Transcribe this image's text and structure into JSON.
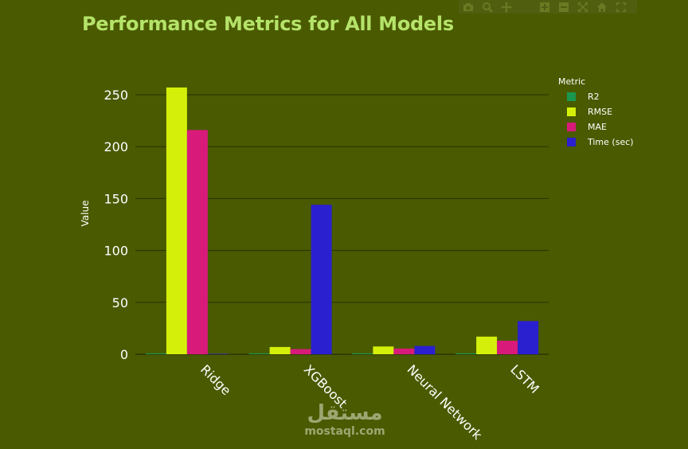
{
  "chart_data": {
    "type": "bar",
    "title": "Performance Metrics for All Models",
    "xlabel": "",
    "ylabel": "Value",
    "legend_title": "Metric",
    "legend_position": "top-right",
    "grid": true,
    "ylim": [
      0,
      270
    ],
    "yticks": [
      0,
      50,
      100,
      150,
      200,
      250
    ],
    "categories": [
      "Ridge",
      "XGBoost",
      "Neural Network",
      "LSTM"
    ],
    "series": [
      {
        "name": "R2",
        "color": "#1a9850",
        "values": [
          0.9,
          0.9,
          0.9,
          0.9
        ]
      },
      {
        "name": "RMSE",
        "color": "#d4f00a",
        "values": [
          257,
          7,
          7.5,
          17
        ]
      },
      {
        "name": "MAE",
        "color": "#d81b7a",
        "values": [
          216,
          5,
          5.5,
          13
        ]
      },
      {
        "name": "Time (sec)",
        "color": "#2a20cf",
        "values": [
          0.5,
          144,
          8,
          32
        ]
      }
    ]
  },
  "colors": {
    "background": "#4a5a00",
    "title": "#b5e36a",
    "text": "#ffffff",
    "grid": "#2a3000"
  },
  "modebar": {
    "icons": [
      "camera-icon",
      "zoom-icon",
      "pan-icon",
      "zoom-in-icon",
      "zoom-out-icon",
      "autoscale-icon",
      "reset-axes-icon",
      "fullscreen-icon"
    ]
  },
  "watermark": {
    "main": "مستقل",
    "sub": "mostaql.com"
  }
}
